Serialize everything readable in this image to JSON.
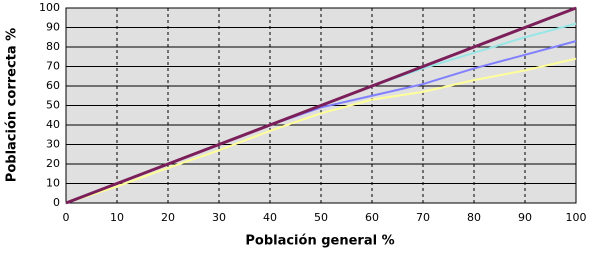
{
  "chart_data": {
    "type": "line",
    "xlabel": "Población general %",
    "ylabel": "Población correcta %",
    "x": [
      0,
      10,
      20,
      30,
      40,
      50,
      60,
      70,
      80,
      90,
      100
    ],
    "series": [
      {
        "color": "#ffff99",
        "values": [
          0,
          8.5,
          18,
          27,
          37,
          46,
          53,
          57,
          63,
          68,
          74
        ]
      },
      {
        "color": "#8080ff",
        "values": [
          0,
          10,
          20,
          30,
          40,
          49,
          55,
          61,
          69,
          76,
          83
        ]
      },
      {
        "color": "#99e6e6",
        "values": [
          0,
          10,
          20,
          30,
          40,
          50,
          60,
          69,
          77,
          85,
          92
        ]
      },
      {
        "color": "#7b1f5a",
        "values": [
          0,
          10,
          20,
          30,
          40,
          50,
          60,
          70,
          80,
          90,
          100
        ]
      }
    ],
    "xlim": [
      0,
      100
    ],
    "ylim": [
      0,
      100
    ],
    "xticks": [
      0,
      10,
      20,
      30,
      40,
      50,
      60,
      70,
      80,
      90,
      100
    ],
    "yticks": [
      0,
      10,
      20,
      30,
      40,
      50,
      60,
      70,
      80,
      90,
      100
    ],
    "grid": true,
    "background": "#e0e0e0"
  }
}
